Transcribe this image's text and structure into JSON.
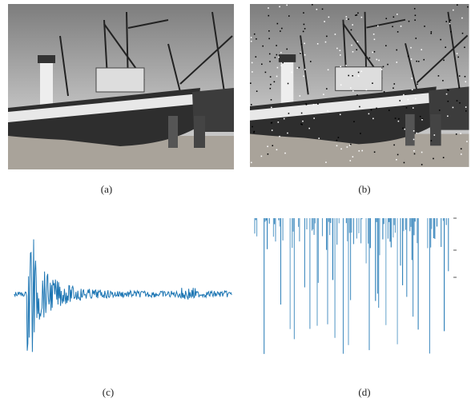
{
  "captions": {
    "a": "(a)",
    "b": "(b)",
    "c": "(c)",
    "d": "(d)"
  }
}
